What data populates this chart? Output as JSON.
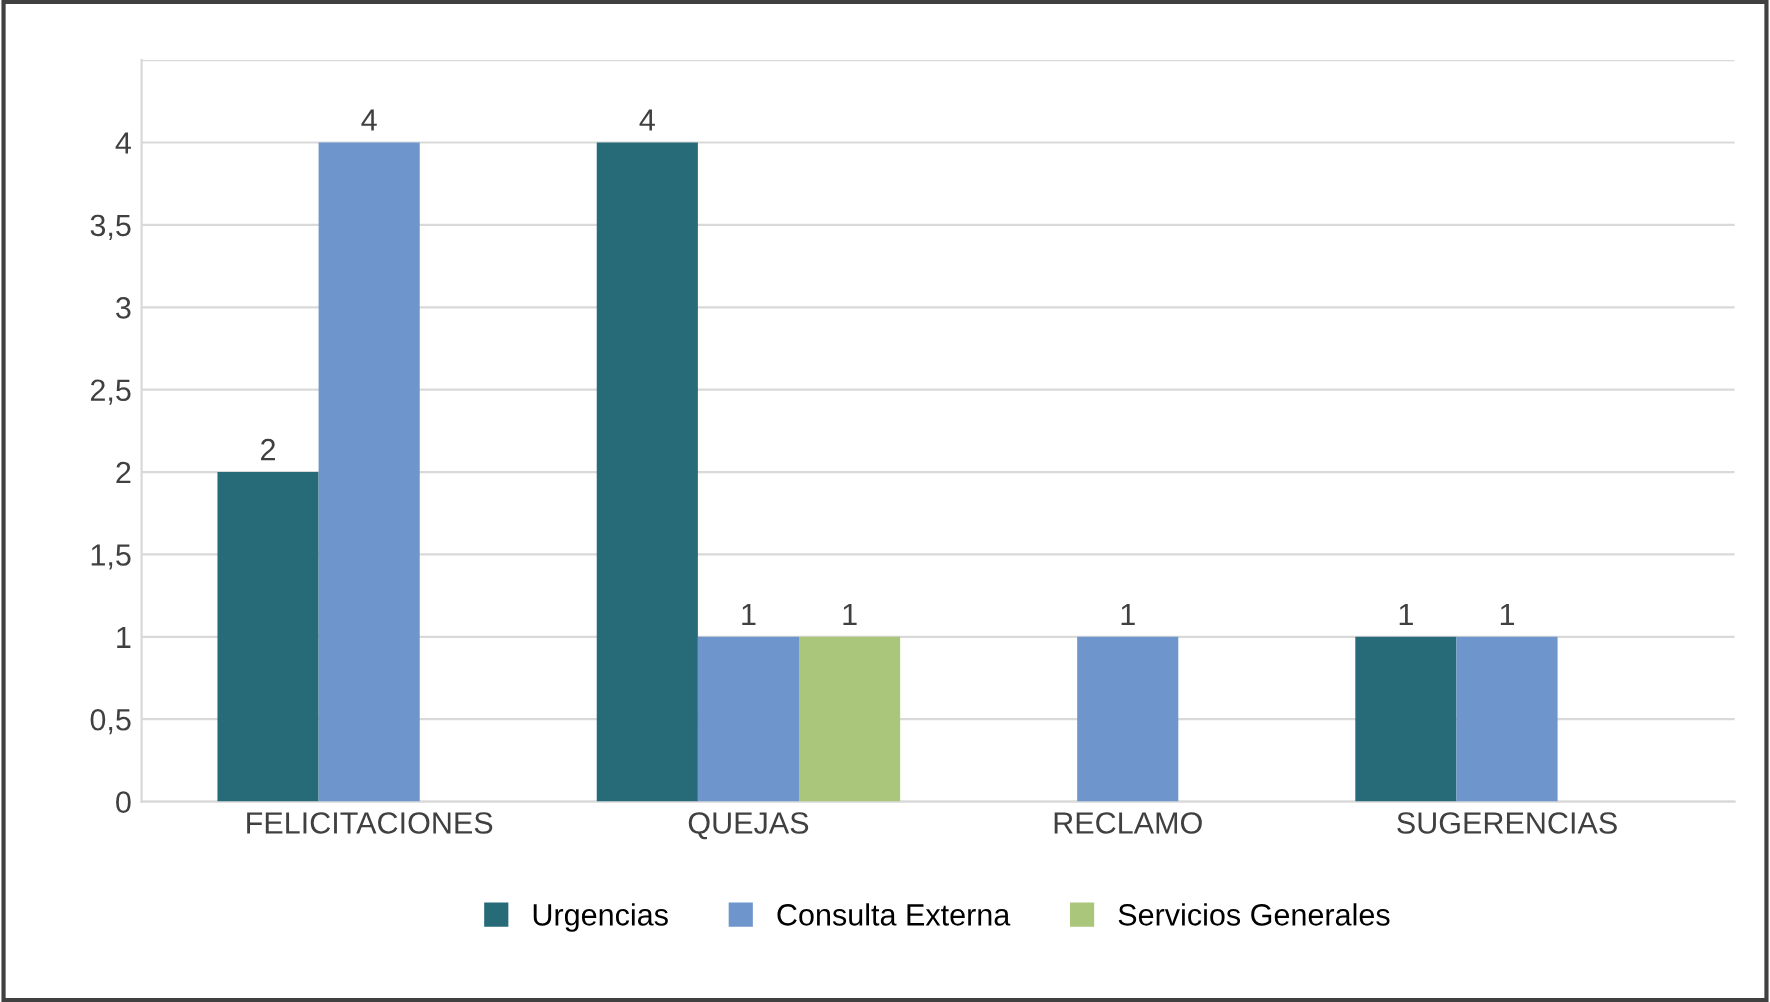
{
  "chart_data": {
    "type": "bar",
    "categories": [
      "FELICITACIONES",
      "QUEJAS",
      "RECLAMO",
      "SUGERENCIAS"
    ],
    "series": [
      {
        "name": "Urgencias",
        "color": "#276b78",
        "values": [
          2,
          4,
          null,
          1
        ]
      },
      {
        "name": "Consulta Externa",
        "color": "#6f96cc",
        "values": [
          4,
          1,
          1,
          1
        ]
      },
      {
        "name": "Servicios Generales",
        "color": "#a9c67a",
        "values": [
          null,
          1,
          null,
          null
        ]
      }
    ],
    "ylim": [
      0,
      4.5
    ],
    "yticks": [
      0,
      {
        "value": 0.5,
        "label": "0,5"
      },
      1,
      {
        "value": 1.5,
        "label": "1,5"
      },
      2,
      {
        "value": 2.5,
        "label": "2,5"
      },
      3,
      {
        "value": 3.5,
        "label": "3,5"
      },
      4,
      {
        "value": 4.5,
        "label": null
      }
    ],
    "grid": "y",
    "legend": "bottom",
    "data_labels": true
  }
}
